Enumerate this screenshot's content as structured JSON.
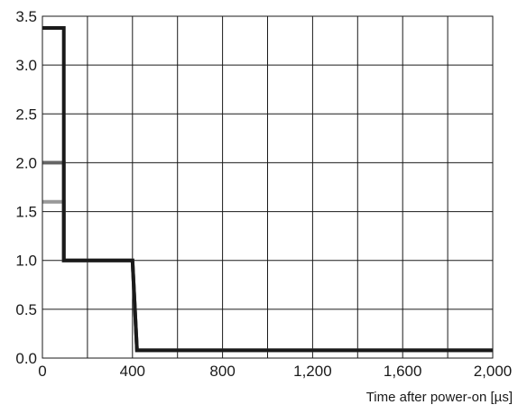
{
  "chart_data": {
    "type": "line",
    "title": "",
    "xlabel": "Time after power-on [µs]",
    "ylabel": "",
    "xlim": [
      0,
      2000
    ],
    "ylim": [
      0,
      3.5
    ],
    "x_ticks": [
      0,
      400,
      800,
      1200,
      1600,
      2000
    ],
    "x_tick_labels": [
      "0",
      "400",
      "800",
      "1,200",
      "1,600",
      "2,000"
    ],
    "x_grid_step": 200,
    "y_ticks": [
      0,
      0.5,
      1.0,
      1.5,
      2.0,
      2.5,
      3.0,
      3.5
    ],
    "y_tick_labels": [
      "0.0",
      "0.5",
      "1.0",
      "1.5",
      "2.0",
      "2.5",
      "3.0",
      "3.5"
    ],
    "grid": true,
    "legend": "none",
    "series": [
      {
        "color": "#999999",
        "points": [
          [
            0,
            1.6
          ],
          [
            95,
            1.6
          ],
          [
            95,
            1.0
          ],
          [
            400,
            1.0
          ],
          [
            420,
            0.08
          ],
          [
            2000,
            0.08
          ]
        ]
      },
      {
        "color": "#666666",
        "points": [
          [
            0,
            2.0
          ],
          [
            95,
            2.0
          ],
          [
            95,
            1.0
          ],
          [
            400,
            1.0
          ],
          [
            420,
            0.08
          ],
          [
            2000,
            0.08
          ]
        ]
      },
      {
        "color": "#1a1a1a",
        "points": [
          [
            0,
            3.38
          ],
          [
            95,
            3.38
          ],
          [
            95,
            1.0
          ],
          [
            400,
            1.0
          ],
          [
            420,
            0.08
          ],
          [
            2000,
            0.08
          ]
        ]
      }
    ]
  }
}
